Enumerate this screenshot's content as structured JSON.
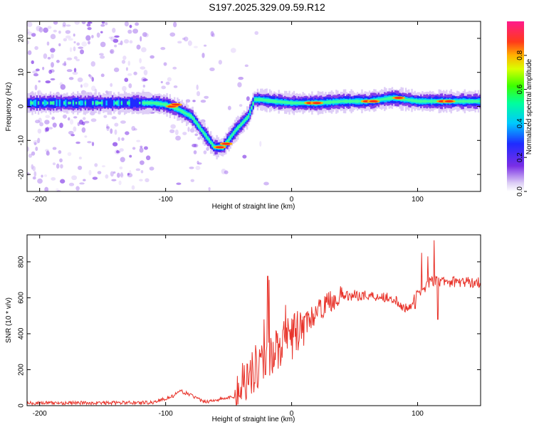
{
  "title": "S197.2025.329.09.59.R12",
  "chart_data": [
    {
      "type": "heatmap",
      "xlabel": "Height of straight line (km)",
      "ylabel": "Frequency (Hz)",
      "xlim": [
        -210,
        150
      ],
      "ylim": [
        -25,
        25
      ],
      "xticks": [
        -200,
        -100,
        0,
        100
      ],
      "yticks": [
        -20,
        -10,
        0,
        10,
        20
      ],
      "colorbar": {
        "label": "Normalized spectral amplitude",
        "ticks": [
          "0.0",
          "0.2",
          "0.4",
          "0.6",
          "0.8"
        ],
        "range": [
          0,
          1
        ]
      },
      "ridge": [
        [
          -210,
          1
        ],
        [
          -180,
          1
        ],
        [
          -150,
          1
        ],
        [
          -120,
          1
        ],
        [
          -110,
          1
        ],
        [
          -100,
          0.5
        ],
        [
          -90,
          -1
        ],
        [
          -80,
          -3
        ],
        [
          -70,
          -8
        ],
        [
          -62,
          -12
        ],
        [
          -55,
          -12
        ],
        [
          -45,
          -7
        ],
        [
          -35,
          -3
        ],
        [
          -30,
          2
        ],
        [
          -25,
          2
        ],
        [
          -15,
          1.5
        ],
        [
          0,
          1
        ],
        [
          20,
          1
        ],
        [
          40,
          1.5
        ],
        [
          60,
          1.5
        ],
        [
          80,
          2.5
        ],
        [
          100,
          1.5
        ],
        [
          120,
          1.5
        ],
        [
          150,
          1.5
        ]
      ]
    },
    {
      "type": "line",
      "xlabel": "Height of straight line (km)",
      "ylabel": "SNR (10 * v/v)",
      "xlim": [
        -210,
        150
      ],
      "ylim": [
        0,
        950
      ],
      "xticks": [
        -200,
        -100,
        0,
        100
      ],
      "yticks": [
        0,
        200,
        400,
        600,
        800
      ],
      "series_color": "#e8332a",
      "trend": [
        [
          -210,
          15
        ],
        [
          -150,
          15
        ],
        [
          -110,
          18
        ],
        [
          -95,
          50
        ],
        [
          -88,
          80
        ],
        [
          -80,
          60
        ],
        [
          -70,
          20
        ],
        [
          -45,
          50
        ],
        [
          -38,
          150
        ],
        [
          -30,
          200
        ],
        [
          -20,
          280
        ],
        [
          -10,
          320
        ],
        [
          0,
          380
        ],
        [
          10,
          450
        ],
        [
          20,
          520
        ],
        [
          30,
          580
        ],
        [
          40,
          610
        ],
        [
          55,
          615
        ],
        [
          75,
          605
        ],
        [
          82,
          595
        ],
        [
          85,
          550
        ],
        [
          90,
          545
        ],
        [
          95,
          560
        ],
        [
          100,
          620
        ],
        [
          110,
          690
        ],
        [
          120,
          690
        ],
        [
          150,
          685
        ]
      ],
      "spikes": [
        [
          -19,
          720
        ],
        [
          -18,
          700
        ],
        [
          103,
          850
        ],
        [
          108,
          830
        ],
        [
          113,
          920
        ],
        [
          116,
          480
        ],
        [
          98,
          540
        ],
        [
          -5,
          560
        ],
        [
          -22,
          480
        ]
      ]
    }
  ]
}
